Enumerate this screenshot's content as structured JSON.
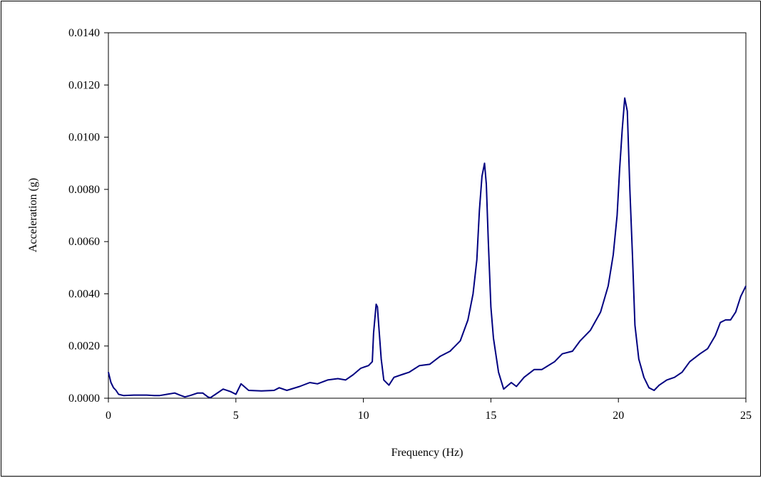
{
  "chart_data": {
    "type": "line",
    "title": "",
    "xlabel": "Frequency (Hz)",
    "ylabel": "Acceleration (g)",
    "xlim": [
      0,
      25
    ],
    "ylim": [
      0,
      0.014
    ],
    "x_ticks": [
      "0",
      "5",
      "10",
      "15",
      "20",
      "25"
    ],
    "y_ticks": [
      "0.0000",
      "0.0020",
      "0.0040",
      "0.0060",
      "0.0080",
      "0.0100",
      "0.0120",
      "0.0140"
    ],
    "grid": false,
    "legend": "none",
    "series": [
      {
        "color": "#000080",
        "points": [
          [
            0.0,
            0.001
          ],
          [
            0.1,
            0.0006
          ],
          [
            0.2,
            0.0004
          ],
          [
            0.3,
            0.0003
          ],
          [
            0.4,
            0.00015
          ],
          [
            0.6,
            0.0001
          ],
          [
            1.0,
            0.00012
          ],
          [
            1.5,
            0.00012
          ],
          [
            1.8,
            0.0001
          ],
          [
            2.0,
            0.0001
          ],
          [
            2.3,
            0.00015
          ],
          [
            2.6,
            0.0002
          ],
          [
            2.8,
            0.00012
          ],
          [
            3.0,
            5e-05
          ],
          [
            3.2,
            0.0001
          ],
          [
            3.5,
            0.0002
          ],
          [
            3.7,
            0.0002
          ],
          [
            3.9,
            5e-05
          ],
          [
            4.0,
            2e-05
          ],
          [
            4.2,
            0.00015
          ],
          [
            4.5,
            0.00035
          ],
          [
            4.8,
            0.00025
          ],
          [
            5.0,
            0.00015
          ],
          [
            5.2,
            0.00055
          ],
          [
            5.5,
            0.0003
          ],
          [
            6.0,
            0.00028
          ],
          [
            6.5,
            0.0003
          ],
          [
            6.7,
            0.0004
          ],
          [
            7.0,
            0.0003
          ],
          [
            7.5,
            0.00045
          ],
          [
            7.9,
            0.0006
          ],
          [
            8.2,
            0.00055
          ],
          [
            8.6,
            0.0007
          ],
          [
            9.0,
            0.00075
          ],
          [
            9.3,
            0.0007
          ],
          [
            9.6,
            0.0009
          ],
          [
            9.9,
            0.00115
          ],
          [
            10.2,
            0.00125
          ],
          [
            10.35,
            0.0014
          ],
          [
            10.4,
            0.0025
          ],
          [
            10.5,
            0.0036
          ],
          [
            10.55,
            0.0035
          ],
          [
            10.6,
            0.0028
          ],
          [
            10.7,
            0.0015
          ],
          [
            10.8,
            0.0007
          ],
          [
            11.0,
            0.0005
          ],
          [
            11.2,
            0.0008
          ],
          [
            11.5,
            0.0009
          ],
          [
            11.8,
            0.001
          ],
          [
            12.2,
            0.00125
          ],
          [
            12.6,
            0.0013
          ],
          [
            13.0,
            0.0016
          ],
          [
            13.4,
            0.0018
          ],
          [
            13.8,
            0.0022
          ],
          [
            14.1,
            0.003
          ],
          [
            14.3,
            0.004
          ],
          [
            14.45,
            0.0053
          ],
          [
            14.55,
            0.0072
          ],
          [
            14.65,
            0.0085
          ],
          [
            14.75,
            0.009
          ],
          [
            14.82,
            0.0082
          ],
          [
            14.9,
            0.006
          ],
          [
            15.0,
            0.0035
          ],
          [
            15.1,
            0.0023
          ],
          [
            15.3,
            0.001
          ],
          [
            15.5,
            0.00035
          ],
          [
            15.8,
            0.0006
          ],
          [
            16.0,
            0.00045
          ],
          [
            16.3,
            0.0008
          ],
          [
            16.7,
            0.0011
          ],
          [
            17.0,
            0.0011
          ],
          [
            17.5,
            0.0014
          ],
          [
            17.8,
            0.0017
          ],
          [
            18.2,
            0.0018
          ],
          [
            18.5,
            0.0022
          ],
          [
            18.9,
            0.0026
          ],
          [
            19.3,
            0.0033
          ],
          [
            19.6,
            0.0043
          ],
          [
            19.8,
            0.0055
          ],
          [
            19.95,
            0.007
          ],
          [
            20.05,
            0.0088
          ],
          [
            20.15,
            0.0103
          ],
          [
            20.25,
            0.0115
          ],
          [
            20.35,
            0.011
          ],
          [
            20.45,
            0.008
          ],
          [
            20.55,
            0.0055
          ],
          [
            20.65,
            0.0028
          ],
          [
            20.8,
            0.0015
          ],
          [
            21.0,
            0.0008
          ],
          [
            21.2,
            0.0004
          ],
          [
            21.4,
            0.0003
          ],
          [
            21.6,
            0.0005
          ],
          [
            21.9,
            0.0007
          ],
          [
            22.2,
            0.0008
          ],
          [
            22.5,
            0.001
          ],
          [
            22.8,
            0.0014
          ],
          [
            23.2,
            0.0017
          ],
          [
            23.5,
            0.0019
          ],
          [
            23.8,
            0.0024
          ],
          [
            24.0,
            0.0029
          ],
          [
            24.2,
            0.003
          ],
          [
            24.4,
            0.003
          ],
          [
            24.6,
            0.0033
          ],
          [
            24.8,
            0.0039
          ],
          [
            25.0,
            0.0043
          ]
        ]
      }
    ]
  }
}
